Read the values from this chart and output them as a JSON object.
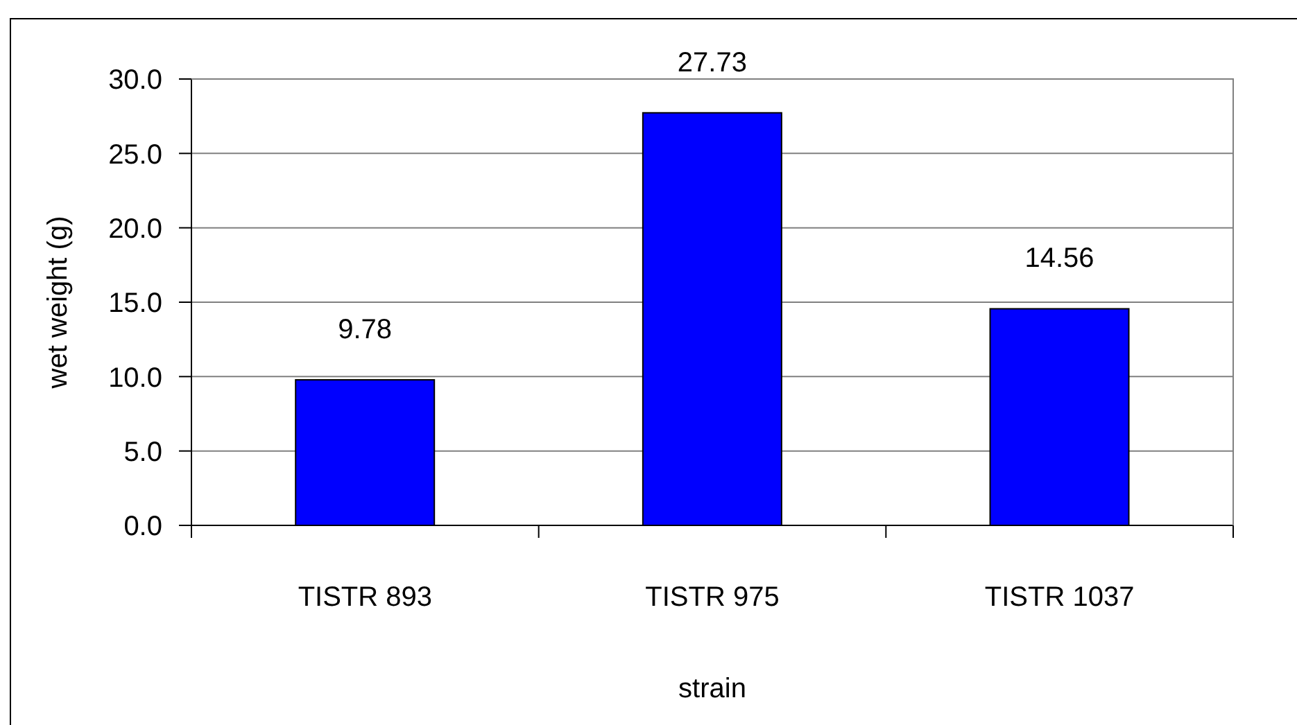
{
  "chart_data": {
    "type": "bar",
    "categories": [
      "TISTR 893",
      "TISTR 975",
      "TISTR 1037"
    ],
    "values": [
      9.78,
      27.73,
      14.56
    ],
    "color": "#0000ff",
    "xlabel": "strain",
    "ylabel": "wet weight (g)",
    "ylim": [
      0,
      30
    ],
    "yticks": [
      {
        "value": 0,
        "label": "0.0"
      },
      {
        "value": 5,
        "label": "5.0"
      },
      {
        "value": 10,
        "label": "10.0"
      },
      {
        "value": 15,
        "label": "15.0"
      },
      {
        "value": 20,
        "label": "20.0"
      },
      {
        "value": 25,
        "label": "25.0"
      },
      {
        "value": 30,
        "label": "30.0"
      }
    ],
    "grid": "y",
    "data_labels": true
  }
}
